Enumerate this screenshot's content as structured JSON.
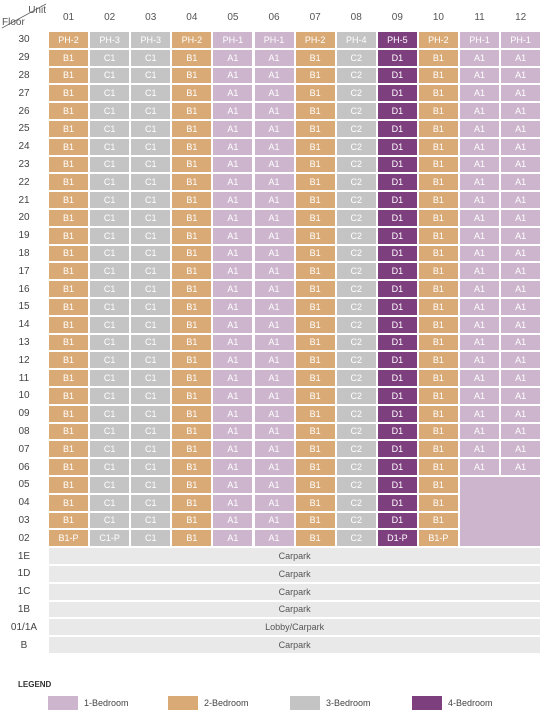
{
  "header": {
    "unit_label": "Unit",
    "floor_label": "Floor",
    "units": [
      "01",
      "02",
      "03",
      "04",
      "05",
      "06",
      "07",
      "08",
      "09",
      "10",
      "11",
      "12"
    ]
  },
  "rows": [
    {
      "floor": "30",
      "units": [
        "PH-2",
        "PH-3",
        "PH-3",
        "PH-2",
        "PH-1",
        "PH-1",
        "PH-2",
        "PH-4",
        "PH-5",
        "PH-2",
        "PH-1",
        "PH-1"
      ]
    },
    {
      "floor": "29",
      "units": [
        "B1",
        "C1",
        "C1",
        "B1",
        "A1",
        "A1",
        "B1",
        "C2",
        "D1",
        "B1",
        "A1",
        "A1"
      ]
    },
    {
      "floor": "28",
      "units": [
        "B1",
        "C1",
        "C1",
        "B1",
        "A1",
        "A1",
        "B1",
        "C2",
        "D1",
        "B1",
        "A1",
        "A1"
      ]
    },
    {
      "floor": "27",
      "units": [
        "B1",
        "C1",
        "C1",
        "B1",
        "A1",
        "A1",
        "B1",
        "C2",
        "D1",
        "B1",
        "A1",
        "A1"
      ]
    },
    {
      "floor": "26",
      "units": [
        "B1",
        "C1",
        "C1",
        "B1",
        "A1",
        "A1",
        "B1",
        "C2",
        "D1",
        "B1",
        "A1",
        "A1"
      ]
    },
    {
      "floor": "25",
      "units": [
        "B1",
        "C1",
        "C1",
        "B1",
        "A1",
        "A1",
        "B1",
        "C2",
        "D1",
        "B1",
        "A1",
        "A1"
      ]
    },
    {
      "floor": "24",
      "units": [
        "B1",
        "C1",
        "C1",
        "B1",
        "A1",
        "A1",
        "B1",
        "C2",
        "D1",
        "B1",
        "A1",
        "A1"
      ]
    },
    {
      "floor": "23",
      "units": [
        "B1",
        "C1",
        "C1",
        "B1",
        "A1",
        "A1",
        "B1",
        "C2",
        "D1",
        "B1",
        "A1",
        "A1"
      ]
    },
    {
      "floor": "22",
      "units": [
        "B1",
        "C1",
        "C1",
        "B1",
        "A1",
        "A1",
        "B1",
        "C2",
        "D1",
        "B1",
        "A1",
        "A1"
      ]
    },
    {
      "floor": "21",
      "units": [
        "B1",
        "C1",
        "C1",
        "B1",
        "A1",
        "A1",
        "B1",
        "C2",
        "D1",
        "B1",
        "A1",
        "A1"
      ]
    },
    {
      "floor": "20",
      "units": [
        "B1",
        "C1",
        "C1",
        "B1",
        "A1",
        "A1",
        "B1",
        "C2",
        "D1",
        "B1",
        "A1",
        "A1"
      ]
    },
    {
      "floor": "19",
      "units": [
        "B1",
        "C1",
        "C1",
        "B1",
        "A1",
        "A1",
        "B1",
        "C2",
        "D1",
        "B1",
        "A1",
        "A1"
      ]
    },
    {
      "floor": "18",
      "units": [
        "B1",
        "C1",
        "C1",
        "B1",
        "A1",
        "A1",
        "B1",
        "C2",
        "D1",
        "B1",
        "A1",
        "A1"
      ]
    },
    {
      "floor": "17",
      "units": [
        "B1",
        "C1",
        "C1",
        "B1",
        "A1",
        "A1",
        "B1",
        "C2",
        "D1",
        "B1",
        "A1",
        "A1"
      ]
    },
    {
      "floor": "16",
      "units": [
        "B1",
        "C1",
        "C1",
        "B1",
        "A1",
        "A1",
        "B1",
        "C2",
        "D1",
        "B1",
        "A1",
        "A1"
      ]
    },
    {
      "floor": "15",
      "units": [
        "B1",
        "C1",
        "C1",
        "B1",
        "A1",
        "A1",
        "B1",
        "C2",
        "D1",
        "B1",
        "A1",
        "A1"
      ]
    },
    {
      "floor": "14",
      "units": [
        "B1",
        "C1",
        "C1",
        "B1",
        "A1",
        "A1",
        "B1",
        "C2",
        "D1",
        "B1",
        "A1",
        "A1"
      ]
    },
    {
      "floor": "13",
      "units": [
        "B1",
        "C1",
        "C1",
        "B1",
        "A1",
        "A1",
        "B1",
        "C2",
        "D1",
        "B1",
        "A1",
        "A1"
      ]
    },
    {
      "floor": "12",
      "units": [
        "B1",
        "C1",
        "C1",
        "B1",
        "A1",
        "A1",
        "B1",
        "C2",
        "D1",
        "B1",
        "A1",
        "A1"
      ]
    },
    {
      "floor": "11",
      "units": [
        "B1",
        "C1",
        "C1",
        "B1",
        "A1",
        "A1",
        "B1",
        "C2",
        "D1",
        "B1",
        "A1",
        "A1"
      ]
    },
    {
      "floor": "10",
      "units": [
        "B1",
        "C1",
        "C1",
        "B1",
        "A1",
        "A1",
        "B1",
        "C2",
        "D1",
        "B1",
        "A1",
        "A1"
      ]
    },
    {
      "floor": "09",
      "units": [
        "B1",
        "C1",
        "C1",
        "B1",
        "A1",
        "A1",
        "B1",
        "C2",
        "D1",
        "B1",
        "A1",
        "A1"
      ]
    },
    {
      "floor": "08",
      "units": [
        "B1",
        "C1",
        "C1",
        "B1",
        "A1",
        "A1",
        "B1",
        "C2",
        "D1",
        "B1",
        "A1",
        "A1"
      ]
    },
    {
      "floor": "07",
      "units": [
        "B1",
        "C1",
        "C1",
        "B1",
        "A1",
        "A1",
        "B1",
        "C2",
        "D1",
        "B1",
        "A1",
        "A1"
      ]
    },
    {
      "floor": "06",
      "units": [
        "B1",
        "C1",
        "C1",
        "B1",
        "A1",
        "A1",
        "B1",
        "C2",
        "D1",
        "B1",
        "A1",
        "A1"
      ]
    },
    {
      "floor": "05",
      "units": [
        "B1",
        "C1",
        "C1",
        "B1",
        "A1",
        "A1",
        "B1",
        "C2",
        "D1",
        "B1"
      ]
    },
    {
      "floor": "04",
      "units": [
        "B1",
        "C1",
        "C1",
        "B1",
        "A1",
        "A1",
        "B1",
        "C2",
        "D1",
        "B1"
      ]
    },
    {
      "floor": "03",
      "units": [
        "B1",
        "C1",
        "C1",
        "B1",
        "A1",
        "A1",
        "B1",
        "C2",
        "D1",
        "B1"
      ]
    },
    {
      "floor": "02",
      "units": [
        "B1-P",
        "C1-P",
        "C1",
        "B1",
        "A1",
        "A1",
        "B1",
        "C2",
        "D1-P",
        "B1-P"
      ]
    }
  ],
  "podium": [
    {
      "floor": "1E",
      "label": "Carpark"
    },
    {
      "floor": "1D",
      "label": "Carpark"
    },
    {
      "floor": "1C",
      "label": "Carpark"
    },
    {
      "floor": "1B",
      "label": "Carpark"
    },
    {
      "floor": "01/1A",
      "label": "Lobby/Carpark"
    },
    {
      "floor": "B",
      "label": "Carpark"
    }
  ],
  "legend": {
    "title": "LEGEND",
    "items": [
      "1-Bedroom",
      "2-Bedroom",
      "3-Bedroom",
      "4-Bedroom"
    ]
  }
}
